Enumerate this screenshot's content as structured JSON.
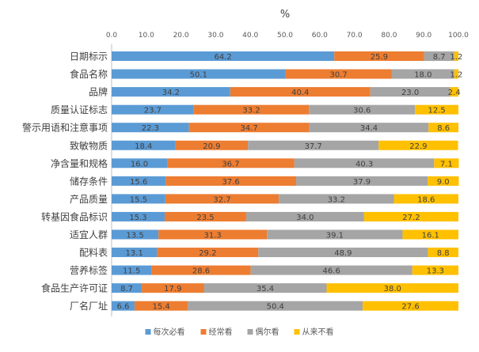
{
  "chart_data": {
    "type": "bar",
    "orientation": "horizontal",
    "stacked": true,
    "title": "%",
    "xlim": [
      0,
      100
    ],
    "x_ticks": [
      "0.0",
      "10.0",
      "20.0",
      "30.0",
      "40.0",
      "50.0",
      "60.0",
      "70.0",
      "80.0",
      "90.0",
      "100.0"
    ],
    "grid": false,
    "legend_position": "bottom",
    "categories": [
      "日期标示",
      "食品名称",
      "品牌",
      "质量认证标志",
      "警示用语和注意事项",
      "致敏物质",
      "净含量和规格",
      "储存条件",
      "产品质量",
      "转基因食品标识",
      "适宜人群",
      "配料表",
      "营养标签",
      "食品生产许可证",
      "厂名厂址"
    ],
    "series": [
      {
        "name": "每次必看",
        "color": "#5B9BD5",
        "values": [
          64.2,
          50.1,
          34.2,
          23.7,
          22.3,
          18.4,
          16.0,
          15.6,
          15.5,
          15.3,
          13.5,
          13.1,
          11.5,
          8.7,
          6.6
        ]
      },
      {
        "name": "经常看",
        "color": "#ED7D31",
        "values": [
          25.9,
          30.7,
          40.4,
          33.2,
          34.7,
          20.9,
          36.7,
          37.6,
          32.7,
          23.5,
          31.3,
          29.2,
          28.6,
          17.9,
          15.4
        ]
      },
      {
        "name": "偶尔看",
        "color": "#A5A5A5",
        "values": [
          8.7,
          18.0,
          23.0,
          30.6,
          34.4,
          37.7,
          40.3,
          37.9,
          33.2,
          34.0,
          39.1,
          48.9,
          46.6,
          35.4,
          50.4
        ]
      },
      {
        "name": "从来不看",
        "color": "#FFC000",
        "values": [
          1.2,
          1.2,
          2.4,
          12.5,
          8.6,
          22.9,
          7.1,
          9.0,
          18.6,
          27.2,
          16.1,
          8.8,
          13.3,
          38.0,
          27.6
        ]
      }
    ]
  }
}
